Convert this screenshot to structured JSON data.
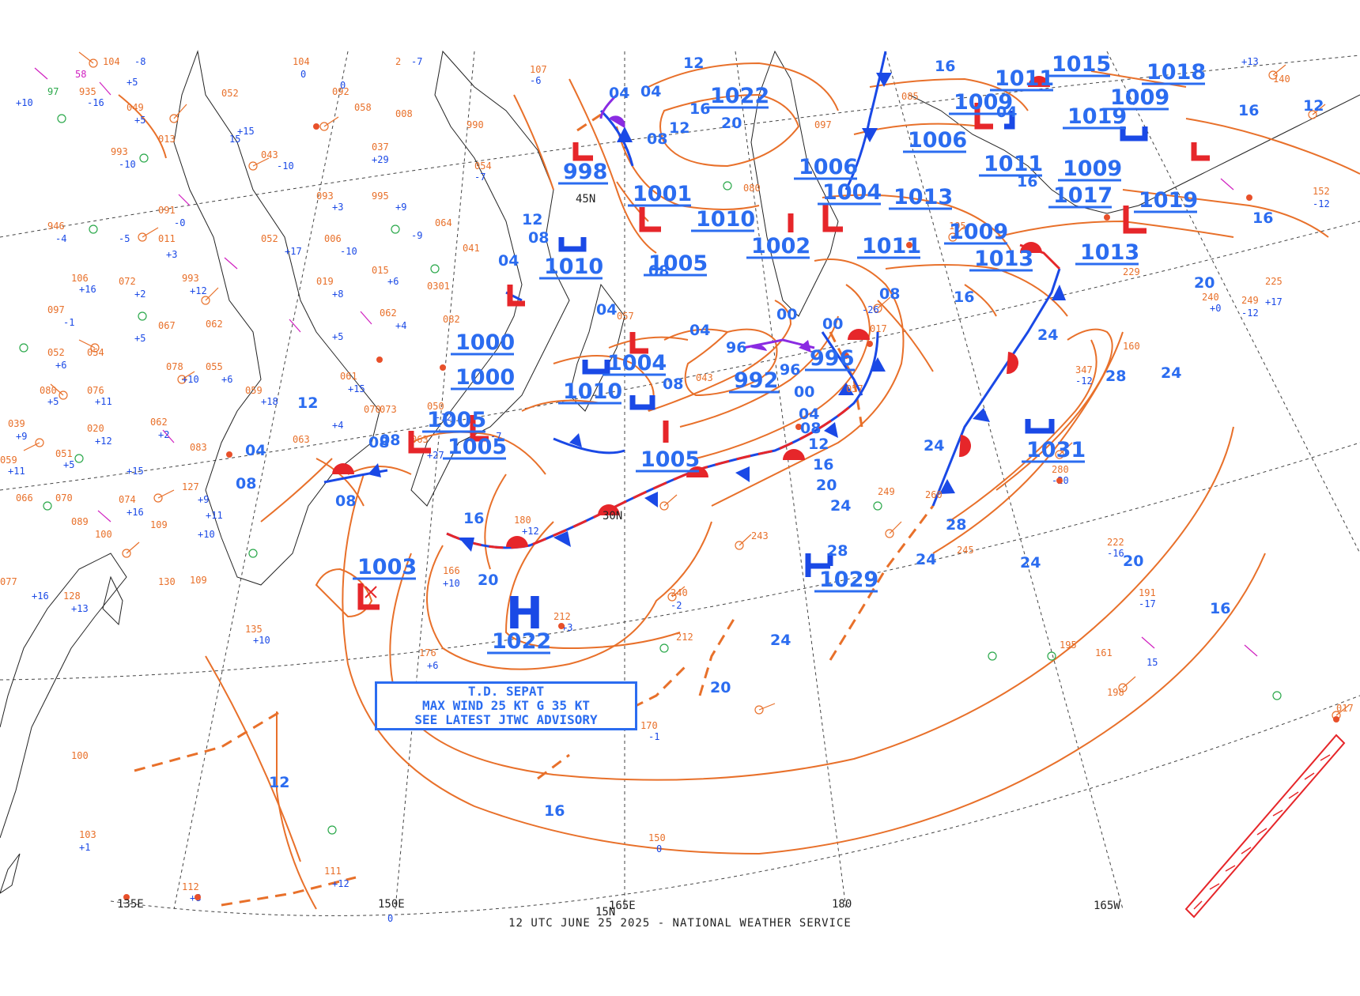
{
  "chart_info": {
    "footer": "12 UTC JUNE 25 2025 - NATIONAL WEATHER SERVICE",
    "advisory": {
      "line1": "T.D. SEPAT",
      "line2": "MAX WIND 25 KT G 35 KT",
      "line3": "SEE LATEST JTWC ADVISORY"
    }
  },
  "longitude_labels": [
    "135E",
    "150E",
    "165E",
    "180",
    "165W"
  ],
  "latitude_labels": [
    "15N",
    "30N",
    "45N"
  ],
  "pressure_centers": [
    {
      "type": "H",
      "value": "1022"
    },
    {
      "type": "H",
      "value": "1029"
    },
    {
      "type": "L",
      "value": "1003"
    }
  ],
  "isobar_labels": {
    "tick_values": [
      "04",
      "08",
      "12",
      "16",
      "20",
      "24",
      "28",
      "00",
      "96"
    ],
    "pressure_values": [
      "998",
      "1001",
      "1010",
      "1022",
      "1006",
      "1004",
      "1005",
      "1002",
      "1011",
      "1013",
      "1009",
      "1019",
      "1017",
      "1018",
      "1015",
      "1000",
      "992",
      "996",
      "1031",
      "1029",
      "1003"
    ]
  },
  "colors": {
    "isobar": "#e8702a",
    "label_blue": "#2b6cf0",
    "high": "#1a49e6",
    "low": "#e6262a",
    "cold_front": "#1a49e6",
    "warm_front": "#e6262a",
    "occluded": "#8a2be2",
    "coast": "#222222",
    "grid": "#444444",
    "station_green": "#2aa84a",
    "station_magenta": "#d020c0",
    "station_orange": "#e8702a"
  }
}
